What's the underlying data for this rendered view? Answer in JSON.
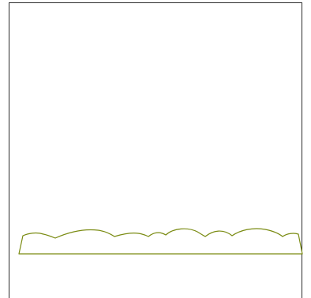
{
  "game": {
    "background_color": "#ffffff",
    "frame_color": "#2b2b2b",
    "terrain": {
      "name": "grass-hills",
      "stroke_color": "#7a8b12",
      "fill_color": "#ffffff"
    }
  }
}
